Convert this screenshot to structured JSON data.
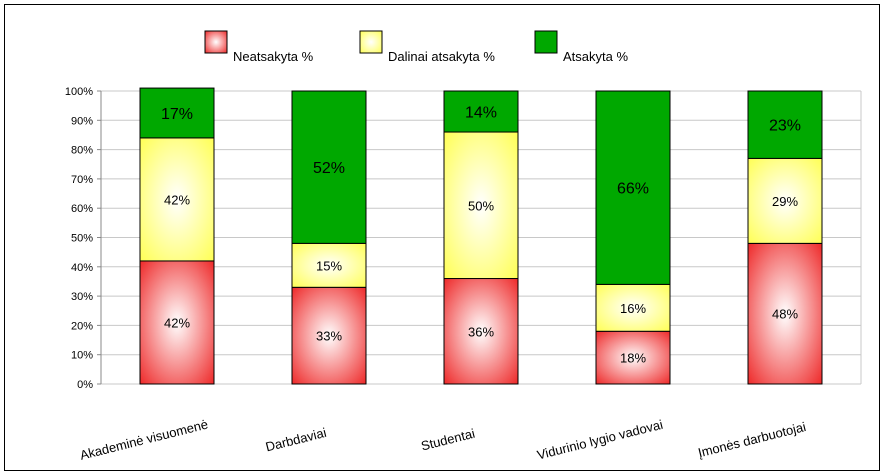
{
  "chart_data": {
    "type": "bar",
    "stacked": true,
    "percent": true,
    "categories": [
      "Akademinė visuomenė",
      "Darbdaviai",
      "Studentai",
      "Vidurinio lygio vadovai",
      "Įmonės darbuotojai"
    ],
    "series": [
      {
        "name": "Neatsakyta %",
        "values": [
          42,
          33,
          36,
          18,
          48
        ],
        "labels": [
          "42%",
          "33%",
          "36%",
          "18%",
          "48%"
        ],
        "color": "#ee2a2a",
        "style": "radial-gradient"
      },
      {
        "name": "Dalinai atsakyta %",
        "values": [
          42,
          15,
          50,
          16,
          29
        ],
        "labels": [
          "42%",
          "15%",
          "50%",
          "16%",
          "29%"
        ],
        "color": "#ffff55",
        "style": "radial-gradient"
      },
      {
        "name": "Atsakyta %",
        "values": [
          17,
          52,
          14,
          66,
          23
        ],
        "labels": [
          "17%",
          "52%",
          "14%",
          "66%",
          "23%"
        ],
        "color": "#00a800",
        "style": "solid"
      }
    ],
    "yticks": [
      "0%",
      "10%",
      "20%",
      "30%",
      "40%",
      "50%",
      "60%",
      "70%",
      "80%",
      "90%",
      "100%"
    ],
    "ylim": [
      0,
      100
    ],
    "grid": true,
    "legend_position": "top-center",
    "title": "",
    "xlabel": "",
    "ylabel": ""
  }
}
